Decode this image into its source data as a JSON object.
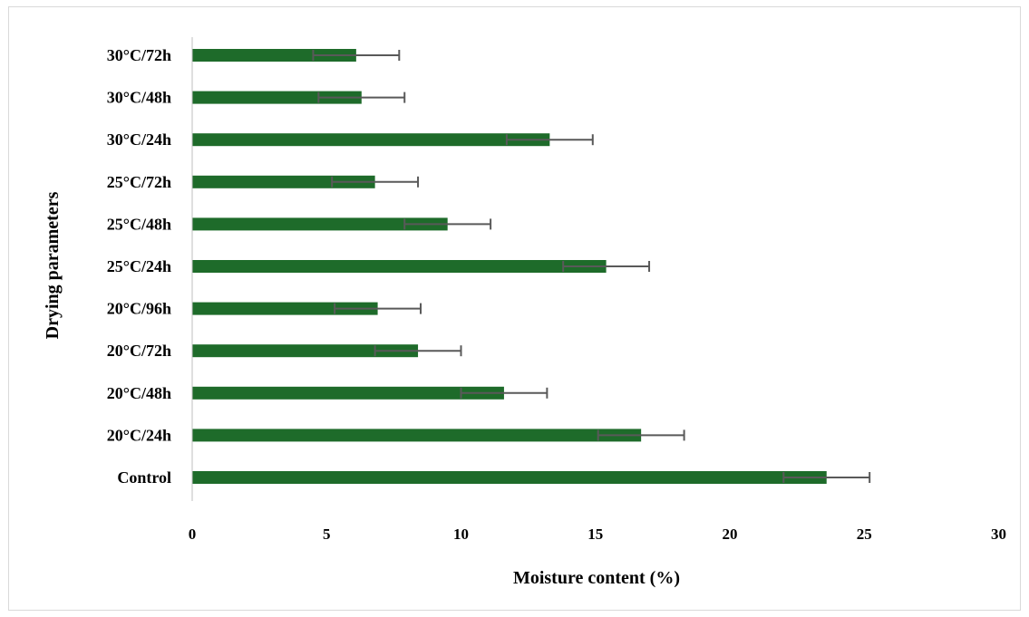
{
  "chart_data": {
    "type": "bar",
    "orientation": "horizontal",
    "title": "",
    "xlabel": "Moisture content (%)",
    "ylabel": "Drying parameters",
    "xlim": [
      0,
      30
    ],
    "xticks": [
      0,
      5,
      10,
      15,
      20,
      25,
      30
    ],
    "grid": false,
    "legend": "none",
    "bar_color": "#1e6b2a",
    "error_bar_color": "#595959",
    "categories": [
      "Control",
      "20°C/24h",
      "20°C/48h",
      "20°C/72h",
      "20°C/96h",
      "25°C/24h",
      "25°C/48h",
      "25°C/72h",
      "30°C/24h",
      "30°C/48h",
      "30°C/72h"
    ],
    "values": [
      23.6,
      16.7,
      11.6,
      8.4,
      6.9,
      15.4,
      9.5,
      6.8,
      13.3,
      6.3,
      6.1
    ],
    "errors": [
      1.6,
      1.6,
      1.6,
      1.6,
      1.6,
      1.6,
      1.6,
      1.6,
      1.6,
      1.6,
      1.6
    ]
  }
}
